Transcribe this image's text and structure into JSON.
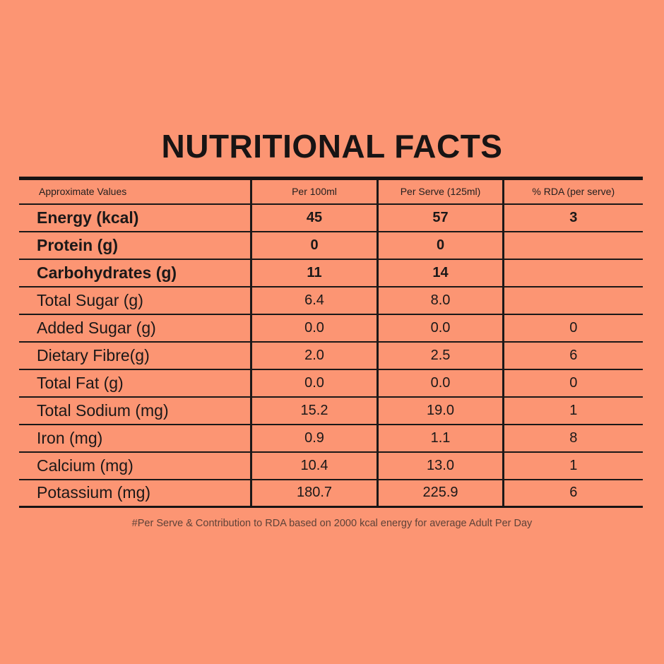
{
  "page": {
    "background_color": "#FC9573",
    "text_color": "#1B1818",
    "footnote_color": "#5E4238"
  },
  "title": "NUTRITIONAL FACTS",
  "table": {
    "columns": [
      "Approximate Values",
      "Per 100ml",
      "Per Serve (125ml)",
      "% RDA (per serve)"
    ],
    "rows": [
      {
        "label": "Energy (kcal)",
        "per_100ml": "45",
        "per_serve": "57",
        "rda": "3",
        "bold": true
      },
      {
        "label": "Protein (g)",
        "per_100ml": "0",
        "per_serve": "0",
        "rda": "",
        "bold": true
      },
      {
        "label": "Carbohydrates (g)",
        "per_100ml": "11",
        "per_serve": "14",
        "rda": "",
        "bold": true
      },
      {
        "label": "Total Sugar (g)",
        "per_100ml": "6.4",
        "per_serve": "8.0",
        "rda": "",
        "bold": false
      },
      {
        "label": "Added Sugar (g)",
        "per_100ml": "0.0",
        "per_serve": "0.0",
        "rda": "0",
        "bold": false
      },
      {
        "label": "Dietary Fibre(g)",
        "per_100ml": "2.0",
        "per_serve": "2.5",
        "rda": "6",
        "bold": false
      },
      {
        "label": "Total Fat (g)",
        "per_100ml": "0.0",
        "per_serve": "0.0",
        "rda": "0",
        "bold": false
      },
      {
        "label": "Total Sodium (mg)",
        "per_100ml": "15.2",
        "per_serve": "19.0",
        "rda": "1",
        "bold": false
      },
      {
        "label": "Iron (mg)",
        "per_100ml": "0.9",
        "per_serve": "1.1",
        "rda": "8",
        "bold": false
      },
      {
        "label": "Calcium (mg)",
        "per_100ml": "10.4",
        "per_serve": "13.0",
        "rda": "1",
        "bold": false
      },
      {
        "label": "Potassium (mg)",
        "per_100ml": "180.7",
        "per_serve": "225.9",
        "rda": "6",
        "bold": false
      }
    ]
  },
  "footnote": "#Per Serve & Contribution to RDA based on 2000 kcal energy for average Adult Per Day"
}
